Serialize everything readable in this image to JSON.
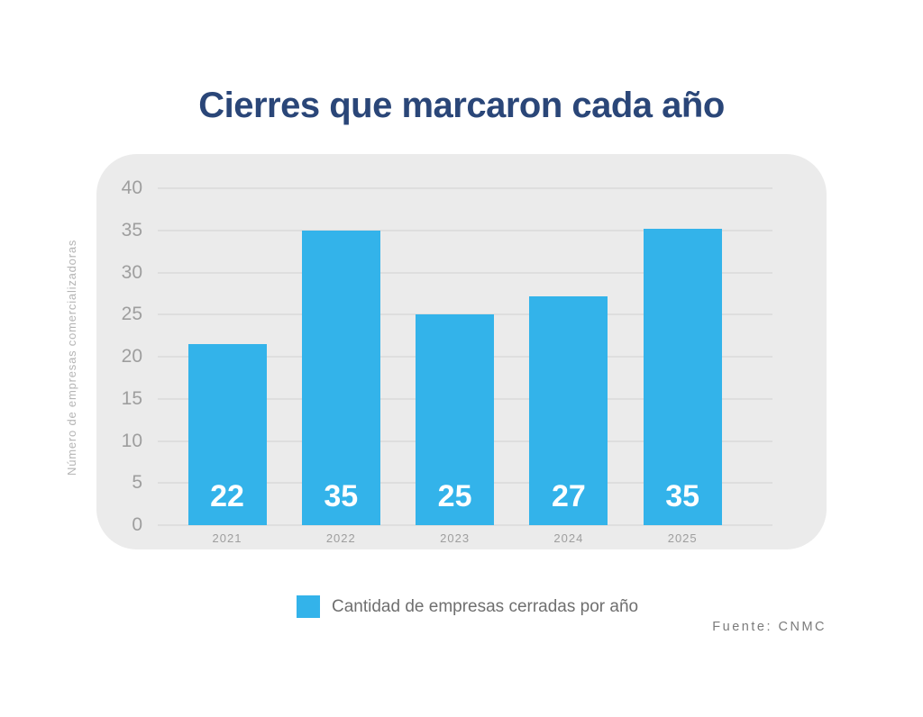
{
  "page": {
    "title": "Cierres que marcaron cada año",
    "source": "Fuente: CNMC"
  },
  "chart_data": {
    "type": "bar",
    "title": "Cierres que marcaron cada año",
    "categories": [
      "2021",
      "2022",
      "2023",
      "2024",
      "2025"
    ],
    "values": [
      22,
      35,
      25,
      27,
      35
    ],
    "bar_labels": [
      "22",
      "35",
      "25",
      "27",
      "35"
    ],
    "drawn_values": [
      21.5,
      35,
      25,
      27.2,
      35.2
    ],
    "xlabel": "",
    "ylabel": "Número de empresas comercializadoras",
    "ylim": [
      0,
      40
    ],
    "yticks": [
      0,
      5,
      10,
      15,
      20,
      25,
      30,
      35,
      40
    ],
    "grid": true,
    "legend": {
      "position": "bottom",
      "entries": [
        {
          "label": "Cantidad de empresas cerradas por año",
          "color": "#33B3EA"
        }
      ]
    },
    "colors": {
      "bar": "#33B3EA",
      "title": "#2A4678",
      "panel_bg": "#EBEBEB",
      "gridline": "#DEDEDE",
      "tick_label": "#9E9E9E",
      "x_tick_label": "#9E9E9E",
      "axis_title": "#B5B5B5",
      "bar_value_label": "#FFFFFF",
      "legend_text": "#6F6F6F",
      "source_text": "#7B7B7B"
    }
  }
}
